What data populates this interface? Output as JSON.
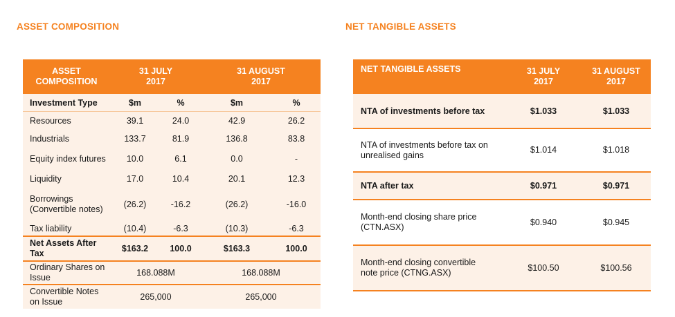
{
  "titles": {
    "left": "ASSET COMPOSITION",
    "right": "NET TANGIBLE ASSETS"
  },
  "asset_table": {
    "header": {
      "col0": "ASSET COMPOSITION",
      "col1": "31 JULY 2017",
      "col2": "31 AUGUST 2017"
    },
    "subheader": {
      "label": "Investment Type",
      "c1": "$m",
      "c2": "%",
      "c3": "$m",
      "c4": "%"
    },
    "rows": [
      {
        "label": "Resources",
        "c1": "39.1",
        "c2": "24.0",
        "c3": "42.9",
        "c4": "26.2"
      },
      {
        "label": "Industrials",
        "c1": "133.7",
        "c2": "81.9",
        "c3": "136.8",
        "c4": "83.8"
      },
      {
        "label": "Equity index futures",
        "c1": "10.0",
        "c2": "6.1",
        "c3": "0.0",
        "c4": "-"
      },
      {
        "label": "Liquidity",
        "c1": "17.0",
        "c2": "10.4",
        "c3": "20.1",
        "c4": "12.3"
      },
      {
        "label": "Borrowings (Convertible notes)",
        "c1": "(26.2)",
        "c2": "-16.2",
        "c3": "(26.2)",
        "c4": "-16.0"
      },
      {
        "label": "Tax liability",
        "c1": "(10.4)",
        "c2": "-6.3",
        "c3": "(10.3)",
        "c4": "-6.3"
      }
    ],
    "total": {
      "label": "Net Assets After Tax",
      "c1": "$163.2",
      "c2": "100.0",
      "c3": "$163.3",
      "c4": "100.0"
    },
    "shares": {
      "label": "Ordinary Shares on Issue",
      "v1": "168.088M",
      "v2": "168.088M"
    },
    "notes": {
      "label": "Convertible Notes on Issue",
      "v1": "265,000",
      "v2": "265,000"
    }
  },
  "nta_table": {
    "header": {
      "col0": "NET TANGIBLE ASSETS",
      "col1": "31 JULY 2017",
      "col2": "31 AUGUST 2017"
    },
    "rows": [
      {
        "label": "NTA of investments before tax",
        "v1": "$1.033",
        "v2": "$1.033"
      },
      {
        "label": "NTA of investments before tax on unrealised gains",
        "v1": "$1.014",
        "v2": "$1.018"
      },
      {
        "label": "NTA after tax",
        "v1": "$0.971",
        "v2": "$0.971"
      },
      {
        "label": "Month-end closing share price (CTN.ASX)",
        "v1": "$0.940",
        "v2": "$0.945"
      },
      {
        "label": "Month-end closing convertible note price (CTNG.ASX)",
        "v1": "$100.50",
        "v2": "$100.56"
      }
    ]
  },
  "colors": {
    "accent": "#f58220",
    "row_tint": "#fdf1e7"
  }
}
